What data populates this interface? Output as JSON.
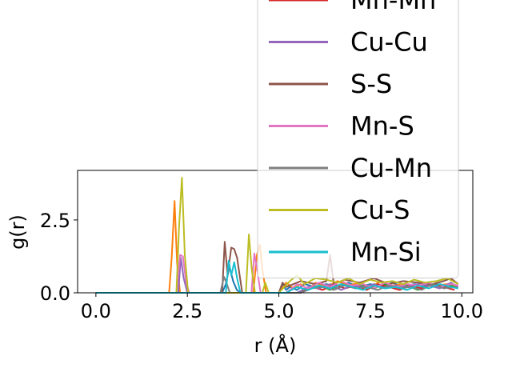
{
  "chart_data": {
    "type": "line",
    "title": "",
    "xlabel": "r (Å)",
    "ylabel": "g(r)",
    "xlim": [
      -0.5,
      10.3
    ],
    "ylim": [
      0,
      4.2
    ],
    "xticks": [
      0.0,
      2.5,
      5.0,
      7.5,
      10.0
    ],
    "xtick_labels": [
      "0.0",
      "2.5",
      "5.0",
      "7.5",
      "10.0"
    ],
    "yticks": [
      0.0,
      2.5
    ],
    "ytick_labels": [
      "0.0",
      "2.5"
    ],
    "grid": false,
    "legend_position": "top-right (overflowing above axes)",
    "series": [
      {
        "name": "",
        "color": "#1f77b4",
        "x": [
          0,
          3.45,
          3.55,
          3.65,
          3.75,
          3.85,
          3.95,
          5.0,
          5.1,
          5.2,
          5.3,
          5.5,
          5.7,
          6.0,
          6.3,
          6.6,
          6.9,
          7.2,
          7.5,
          7.8,
          8.1,
          8.4,
          8.7,
          9.0,
          9.3,
          9.6,
          9.9
        ],
        "y": [
          0,
          0,
          0.3,
          0.9,
          0.4,
          0.1,
          0,
          0,
          0.3,
          0.1,
          0.2,
          0.1,
          0.3,
          0.2,
          0.3,
          0.15,
          0.35,
          0.2,
          0.3,
          0.2,
          0.35,
          0.2,
          0.3,
          0.25,
          0.3,
          0.2,
          0.25
        ]
      },
      {
        "name": "",
        "color": "#ff7f0e",
        "x": [
          0,
          2.0,
          2.07,
          2.15,
          2.22,
          2.3,
          4.3,
          4.4,
          4.48,
          4.55,
          4.65,
          5.0,
          5.2,
          5.4,
          5.6,
          5.8,
          6.0,
          6.3,
          6.6,
          6.9,
          7.2,
          7.5,
          7.8,
          8.1,
          8.4,
          8.7,
          9.0,
          9.3,
          9.6,
          9.9
        ],
        "y": [
          0,
          0,
          1.2,
          3.15,
          1.0,
          0,
          0,
          1.3,
          1.65,
          0.8,
          0,
          0,
          0.35,
          0.15,
          0.3,
          0.1,
          0.35,
          0.2,
          0.4,
          0.25,
          0.35,
          0.2,
          0.4,
          0.25,
          0.3,
          0.2,
          0.35,
          0.25,
          0.3,
          0.2
        ]
      },
      {
        "name": "",
        "color": "#2ca02c",
        "x": [
          0,
          5.5,
          5.8,
          6.1,
          6.4,
          6.7,
          7.0,
          7.3,
          7.6,
          7.9,
          8.2,
          8.5,
          8.8,
          9.1,
          9.4,
          9.7,
          9.9
        ],
        "y": [
          0,
          0,
          0.15,
          0.25,
          0.1,
          0.3,
          0.2,
          0.25,
          0.15,
          0.3,
          0.2,
          0.25,
          0.1,
          0.3,
          0.2,
          0.25,
          0.15
        ]
      },
      {
        "name": "Mn-Mn",
        "color": "#d62728",
        "x": [
          0,
          5.6,
          5.9,
          6.2,
          6.5,
          6.8,
          7.1,
          7.4,
          7.7,
          8.0,
          8.3,
          8.6,
          8.9,
          9.2,
          9.5,
          9.8
        ],
        "y": [
          0,
          0,
          0.2,
          0.1,
          0.3,
          0.15,
          0.25,
          0.1,
          0.3,
          0.2,
          0.1,
          0.25,
          0.15,
          0.3,
          0.2,
          0.1
        ]
      },
      {
        "name": "Cu-Cu",
        "color": "#9467bd",
        "x": [
          0,
          2.25,
          2.32,
          2.4,
          2.5,
          5.5,
          5.8,
          6.1,
          6.4,
          6.7,
          7.0,
          7.3,
          7.6,
          7.9,
          8.2,
          8.5,
          8.8,
          9.1,
          9.4,
          9.7,
          9.9
        ],
        "y": [
          0,
          0,
          1.2,
          0.5,
          0,
          0,
          0.2,
          0.15,
          0.3,
          0.1,
          0.25,
          0.2,
          0.3,
          0.15,
          0.25,
          0.2,
          0.3,
          0.25,
          0.15,
          0.35,
          0.2
        ]
      },
      {
        "name": "S-S",
        "color": "#8c564b",
        "x": [
          0,
          3.45,
          3.52,
          3.6,
          3.7,
          3.78,
          3.86,
          3.94,
          4.0,
          5.0,
          5.1,
          5.2,
          5.6,
          6.0,
          6.3,
          6.4,
          6.5,
          6.8,
          7.2,
          7.6,
          8.0,
          8.4,
          8.8,
          9.2,
          9.5,
          9.7,
          9.9
        ],
        "y": [
          0,
          0,
          1.75,
          0.6,
          1.55,
          1.5,
          1.2,
          0.5,
          0,
          0,
          0.35,
          0.2,
          0.4,
          0.3,
          0.4,
          1.3,
          0.3,
          0.45,
          0.35,
          0.5,
          0.3,
          0.4,
          0.35,
          0.3,
          0.4,
          0.5,
          0.3
        ]
      },
      {
        "name": "Mn-S",
        "color": "#e377c2",
        "x": [
          0,
          2.2,
          2.3,
          2.38,
          2.46,
          2.55,
          4.25,
          4.33,
          4.42,
          4.5,
          5.2,
          5.5,
          5.8,
          6.1,
          6.4,
          6.7,
          7.0,
          7.3,
          7.6,
          7.9,
          8.2,
          8.5,
          8.8,
          9.1,
          9.4,
          9.7,
          9.9
        ],
        "y": [
          0,
          0,
          1.3,
          1.25,
          0.4,
          0,
          0,
          1.35,
          0.7,
          0,
          0,
          0.3,
          0.15,
          0.35,
          0.2,
          0.4,
          0.25,
          0.3,
          0.15,
          0.35,
          0.2,
          0.3,
          0.25,
          0.35,
          0.2,
          0.3,
          0.25
        ]
      },
      {
        "name": "Cu-Mn",
        "color": "#7f7f7f",
        "x": [
          0,
          3.4,
          3.5,
          3.58,
          3.66,
          5.6,
          5.9,
          6.2,
          6.5,
          6.8,
          7.1,
          7.4,
          7.7,
          8.0,
          8.3,
          8.6,
          8.9,
          9.2,
          9.5,
          9.8
        ],
        "y": [
          0,
          0,
          0.55,
          0.3,
          0,
          0,
          0.15,
          0.2,
          0.1,
          0.25,
          0.15,
          0.2,
          0.1,
          0.25,
          0.15,
          0.2,
          0.1,
          0.3,
          0.15,
          0.2
        ]
      },
      {
        "name": "Cu-S",
        "color": "#bcbd22",
        "x": [
          0,
          2.2,
          2.27,
          2.35,
          2.43,
          2.52,
          4.1,
          4.18,
          4.26,
          4.35,
          4.55,
          4.63,
          4.72,
          5.0,
          5.3,
          5.5,
          5.7,
          6.0,
          6.3,
          6.6,
          6.9,
          7.2,
          7.5,
          7.8,
          8.1,
          8.4,
          8.7,
          9.0,
          9.3,
          9.6,
          9.9
        ],
        "y": [
          0,
          0,
          2.2,
          3.95,
          1.3,
          0,
          0,
          2.0,
          0.8,
          0,
          0,
          0.35,
          0,
          0,
          0.4,
          0.6,
          0.3,
          0.5,
          0.45,
          0.35,
          0.5,
          0.3,
          0.45,
          0.35,
          0.4,
          0.3,
          0.45,
          0.35,
          0.4,
          0.5,
          0.3
        ]
      },
      {
        "name": "Mn-Si",
        "color": "#17becf",
        "x": [
          0,
          3.55,
          3.63,
          3.7,
          3.78,
          3.86,
          3.95,
          5.2,
          5.5,
          5.8,
          6.1,
          6.4,
          6.7,
          7.0,
          7.3,
          7.6,
          7.9,
          8.2,
          8.5,
          8.8,
          9.1,
          9.4,
          9.7,
          9.9
        ],
        "y": [
          0,
          0,
          1.1,
          0.6,
          1.05,
          0.5,
          0,
          0,
          0.2,
          0.1,
          0.25,
          0.15,
          0.3,
          0.2,
          0.1,
          0.25,
          0.15,
          0.2,
          0.1,
          0.25,
          0.15,
          0.3,
          0.2,
          0.15
        ]
      }
    ]
  }
}
